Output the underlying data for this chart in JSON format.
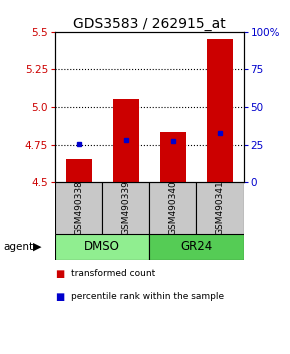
{
  "title": "GDS3583 / 262915_at",
  "samples": [
    "GSM490338",
    "GSM490339",
    "GSM490340",
    "GSM490341"
  ],
  "bar_values": [
    4.655,
    5.055,
    4.835,
    5.455
  ],
  "percentile_values": [
    4.752,
    4.778,
    4.773,
    4.83
  ],
  "bar_color": "#cc0000",
  "dot_color": "#0000cc",
  "ylim": [
    4.5,
    5.5
  ],
  "yticks_left": [
    4.5,
    4.75,
    5.0,
    5.25,
    5.5
  ],
  "yticks_right": [
    0,
    25,
    50,
    75,
    100
  ],
  "ytick_labels_right": [
    "0",
    "25",
    "50",
    "75",
    "100%"
  ],
  "grid_values": [
    4.75,
    5.0,
    5.25
  ],
  "groups": [
    {
      "label": "DMSO",
      "indices": [
        0,
        1
      ],
      "color": "#90ee90"
    },
    {
      "label": "GR24",
      "indices": [
        2,
        3
      ],
      "color": "#55cc55"
    }
  ],
  "group_label": "agent",
  "legend_items": [
    {
      "color": "#cc0000",
      "label": "transformed count"
    },
    {
      "color": "#0000cc",
      "label": "percentile rank within the sample"
    }
  ],
  "bar_bottom": 4.5,
  "background_color": "#ffffff",
  "plot_bg_color": "#ffffff",
  "sample_box_color": "#c8c8c8",
  "title_fontsize": 10,
  "axis_label_color_left": "#cc0000",
  "axis_label_color_right": "#0000cc"
}
